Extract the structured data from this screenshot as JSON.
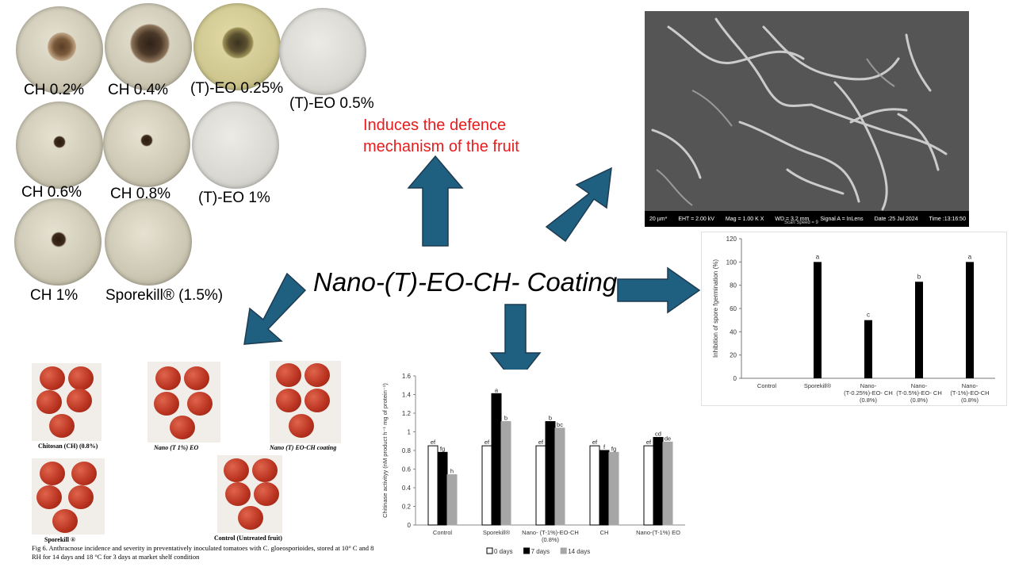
{
  "plates": [
    {
      "label": "CH 0.2%"
    },
    {
      "label": "CH 0.4%"
    },
    {
      "label": "(T)-EO 0.25%"
    },
    {
      "label": "(T)-EO 0.5%"
    },
    {
      "label": "CH 0.6%"
    },
    {
      "label": "CH 0.8%"
    },
    {
      "label": "(T)-EO 1%"
    },
    {
      "label": "CH 1%"
    },
    {
      "label": "Sporekill® (1.5%)"
    }
  ],
  "defence_text": "Induces the defence mechanism of the fruit",
  "center_title": "Nano-(T)-EO-CH- Coating",
  "sem": {
    "scale": "20 µm*",
    "eht": "EHT = 2.00 kV",
    "mag": "Mag = 1.00 K X",
    "wd": "WD = 3.2 mm",
    "signal": "Signal A = InLens",
    "date": "Date :25 Jul 2024",
    "time": "Time :13:16:50",
    "scan": "Scan Speed = 9"
  },
  "tomato_panel": {
    "captions": [
      "Chitosan (CH) (0.8%)",
      "Nano (T 1%) EO",
      "Nano (T) EO-CH coating",
      "Sporekill ®",
      "Control (Untreated fruit)"
    ],
    "figure_caption": "Fig 6. Anthracnose incidence and severity in preventatively inoculated tomatoes with C. gloeosporioides, stored at 10° C and 8 RH for 14 days and 18 °C for 3 days at market shelf condition"
  },
  "colors": {
    "arrow": "#1f5f80",
    "arrow_border": "#1d3c52",
    "red_text": "#e81c1c",
    "bar_black": "#000000",
    "bar_gray": "#a6a6a6"
  },
  "chart_data": [
    {
      "type": "bar",
      "ylabel": "Inhibition of spore fgermination (%)",
      "ylim": [
        0,
        120
      ],
      "yticks": [
        "0",
        "20",
        "40",
        "60",
        "80",
        "100",
        "120"
      ],
      "categories": [
        "Control",
        "Sporekill®",
        "Nano- (T-0.25%)-EO- CH (0.8%)",
        "Nano- (T-0.5%)-EO- CH (0.8%)",
        "Nano- (T-1%)-EO-CH (0.8%)"
      ],
      "values": [
        0,
        100,
        50,
        83,
        100
      ],
      "letters": [
        "",
        "a",
        "c",
        "b",
        "a"
      ]
    },
    {
      "type": "bar",
      "ylabel": "Chitinase activityy (nM product h⁻¹ mg of protein⁻¹)",
      "ylim": [
        0,
        1.6
      ],
      "yticks": [
        "0",
        "0.2",
        "0.4",
        "0.6",
        "0.8",
        "1",
        "1.2",
        "1.4",
        "1.6"
      ],
      "categories": [
        "Control",
        "Sporekill®",
        "Nano- (T-1%)-EO-CH (0.8%)",
        "CH",
        "Nano-(T-1%) EO"
      ],
      "series": [
        {
          "name": "0 days",
          "values": [
            0.85,
            0.85,
            0.85,
            0.85,
            0.85
          ],
          "letters": [
            "ef",
            "ef",
            "ef",
            "ef",
            "ef"
          ]
        },
        {
          "name": "7 days",
          "values": [
            0.78,
            1.41,
            1.11,
            0.8,
            0.94
          ],
          "letters": [
            "fg",
            "a",
            "b",
            "f",
            "cd"
          ]
        },
        {
          "name": "14 days",
          "values": [
            0.54,
            1.11,
            1.04,
            0.78,
            0.89
          ],
          "letters": [
            "h",
            "b",
            "bc",
            "fg",
            "de"
          ]
        }
      ],
      "legend_position": "bottom"
    }
  ]
}
